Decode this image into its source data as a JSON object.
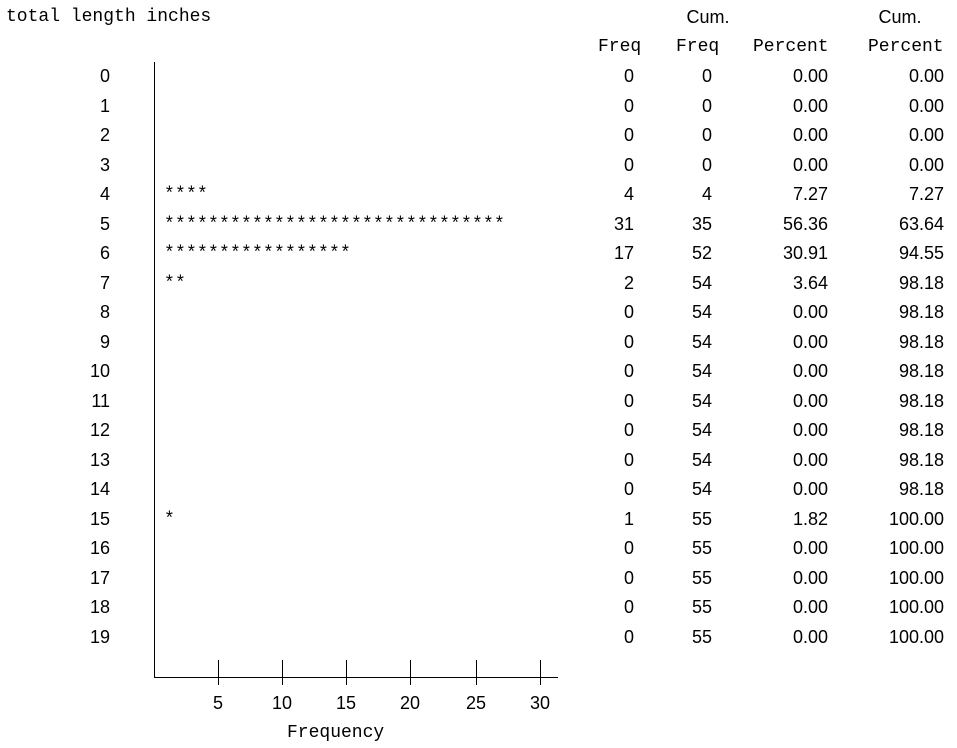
{
  "chart_data": {
    "type": "bar",
    "orientation": "horizontal",
    "title": "total length inches",
    "xlabel": "Frequency",
    "xticks": [
      "5",
      "10",
      "15",
      "20",
      "25",
      "30"
    ],
    "xlim": [
      0,
      31
    ],
    "bar_symbol": "*",
    "table_headers": {
      "freq": [
        "",
        "Freq"
      ],
      "cum_freq": [
        "Cum.",
        "Freq"
      ],
      "percent": [
        "",
        "Percent"
      ],
      "cum_percent": [
        "Cum.",
        "Percent"
      ]
    },
    "rows": [
      {
        "label": "0",
        "freq": 0,
        "cum_freq": 0,
        "percent": "0.00",
        "cum_percent": "0.00"
      },
      {
        "label": "1",
        "freq": 0,
        "cum_freq": 0,
        "percent": "0.00",
        "cum_percent": "0.00"
      },
      {
        "label": "2",
        "freq": 0,
        "cum_freq": 0,
        "percent": "0.00",
        "cum_percent": "0.00"
      },
      {
        "label": "3",
        "freq": 0,
        "cum_freq": 0,
        "percent": "0.00",
        "cum_percent": "0.00"
      },
      {
        "label": "4",
        "freq": 4,
        "cum_freq": 4,
        "percent": "7.27",
        "cum_percent": "7.27"
      },
      {
        "label": "5",
        "freq": 31,
        "cum_freq": 35,
        "percent": "56.36",
        "cum_percent": "63.64"
      },
      {
        "label": "6",
        "freq": 17,
        "cum_freq": 52,
        "percent": "30.91",
        "cum_percent": "94.55"
      },
      {
        "label": "7",
        "freq": 2,
        "cum_freq": 54,
        "percent": "3.64",
        "cum_percent": "98.18"
      },
      {
        "label": "8",
        "freq": 0,
        "cum_freq": 54,
        "percent": "0.00",
        "cum_percent": "98.18"
      },
      {
        "label": "9",
        "freq": 0,
        "cum_freq": 54,
        "percent": "0.00",
        "cum_percent": "98.18"
      },
      {
        "label": "10",
        "freq": 0,
        "cum_freq": 54,
        "percent": "0.00",
        "cum_percent": "98.18"
      },
      {
        "label": "11",
        "freq": 0,
        "cum_freq": 54,
        "percent": "0.00",
        "cum_percent": "98.18"
      },
      {
        "label": "12",
        "freq": 0,
        "cum_freq": 54,
        "percent": "0.00",
        "cum_percent": "98.18"
      },
      {
        "label": "13",
        "freq": 0,
        "cum_freq": 54,
        "percent": "0.00",
        "cum_percent": "98.18"
      },
      {
        "label": "14",
        "freq": 0,
        "cum_freq": 54,
        "percent": "0.00",
        "cum_percent": "98.18"
      },
      {
        "label": "15",
        "freq": 1,
        "cum_freq": 55,
        "percent": "1.82",
        "cum_percent": "100.00"
      },
      {
        "label": "16",
        "freq": 0,
        "cum_freq": 55,
        "percent": "0.00",
        "cum_percent": "100.00"
      },
      {
        "label": "17",
        "freq": 0,
        "cum_freq": 55,
        "percent": "0.00",
        "cum_percent": "100.00"
      },
      {
        "label": "18",
        "freq": 0,
        "cum_freq": 55,
        "percent": "0.00",
        "cum_percent": "100.00"
      },
      {
        "label": "19",
        "freq": 0,
        "cum_freq": 55,
        "percent": "0.00",
        "cum_percent": "100.00"
      }
    ]
  }
}
